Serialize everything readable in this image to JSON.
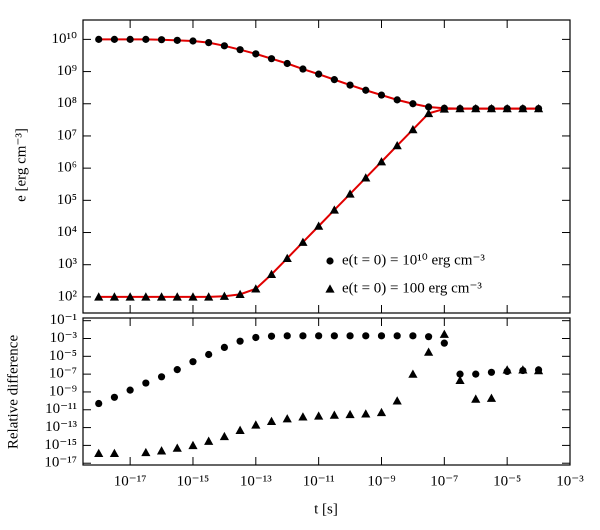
{
  "chart_data": [
    {
      "type": "scatter",
      "ylabel": "e [erg cm⁻³]",
      "log_x": true,
      "log_y": true,
      "legend": "lower right",
      "xlim": [
        3.16e-19,
        0.001
      ],
      "ylim": [
        31.6,
        40000000000.0
      ],
      "yticks": [
        {
          "value": 100,
          "label": "10²"
        },
        {
          "value": 1000,
          "label": "10³"
        },
        {
          "value": 10000,
          "label": "10⁴"
        },
        {
          "value": 100000,
          "label": "10⁵"
        },
        {
          "value": 1000000,
          "label": "10⁶"
        },
        {
          "value": 10000000,
          "label": "10⁷"
        },
        {
          "value": 100000000,
          "label": "10⁸"
        },
        {
          "value": 1000000000,
          "label": "10⁹"
        },
        {
          "value": 10000000000,
          "label": "10¹⁰"
        }
      ],
      "x": [
        1e-18,
        3.16e-18,
        1e-17,
        3.16e-17,
        1e-16,
        3.16e-16,
        1e-15,
        3.16e-15,
        1e-14,
        3.16e-14,
        1e-13,
        3.16e-13,
        1e-12,
        3.16e-12,
        1e-11,
        3.16e-11,
        1e-10,
        3.16e-10,
        1e-09,
        3.16e-09,
        1e-08,
        3.16e-08,
        1e-07,
        3.16e-07,
        1e-06,
        3.16e-06,
        1e-05,
        3.16e-05,
        0.0001
      ],
      "series": [
        {
          "kind": "line",
          "color": "#e00000",
          "values": [
            10000000000.0,
            10000000000.0,
            10000000000.0,
            10000000000.0,
            9770000000.0,
            9330000000.0,
            8910000000.0,
            7940000000.0,
            6310000000.0,
            4790000000.0,
            3550000000.0,
            2510000000.0,
            1780000000.0,
            1200000000.0,
            832000000.0,
            562000000.0,
            380000000.0,
            263000000.0,
            186000000.0,
            132000000.0,
            100000000.0,
            79400000.0,
            72400000.0,
            70800000.0,
            70800000.0,
            70800000.0,
            70800000.0,
            70800000.0,
            70800000.0
          ]
        },
        {
          "kind": "line",
          "color": "#e00000",
          "values": [
            100,
            100,
            100,
            100,
            100,
            100,
            100,
            100,
            105,
            120,
            178,
            501,
            1580,
            5010,
            15800,
            50100,
            158000,
            501000,
            1580000,
            5010000,
            15800000,
            50100000,
            69200000,
            70800000,
            70800000,
            70800000,
            70800000,
            70800000,
            70800000
          ]
        },
        {
          "kind": "circle",
          "name": "e(t = 0) = 10¹⁰ erg cm⁻³",
          "color": "#000000",
          "values": [
            10000000000.0,
            10000000000.0,
            10000000000.0,
            10000000000.0,
            9770000000.0,
            9330000000.0,
            8910000000.0,
            7940000000.0,
            6310000000.0,
            4790000000.0,
            3550000000.0,
            2510000000.0,
            1780000000.0,
            1200000000.0,
            832000000.0,
            562000000.0,
            380000000.0,
            263000000.0,
            186000000.0,
            132000000.0,
            100000000.0,
            79400000.0,
            72400000.0,
            70800000.0,
            70800000.0,
            70800000.0,
            70800000.0,
            70800000.0,
            70800000.0
          ]
        },
        {
          "kind": "triangle",
          "name": "e(t = 0) = 100 erg cm⁻³",
          "color": "#000000",
          "values": [
            100,
            100,
            100,
            100,
            100,
            100,
            100,
            100,
            105,
            120,
            178,
            501,
            1580,
            5010,
            15800,
            50100,
            158000,
            501000,
            1580000,
            5010000,
            15800000,
            50100000,
            69200000,
            70800000,
            70800000,
            70800000,
            70800000,
            70800000,
            70800000
          ]
        }
      ]
    },
    {
      "type": "scatter",
      "ylabel": "Relative difference",
      "xlabel": "t [s]",
      "log_x": true,
      "log_y": true,
      "xlim": [
        3.16e-19,
        0.001
      ],
      "ylim": [
        6.3e-18,
        0.2
      ],
      "xticks": [
        {
          "value": 1e-17,
          "label": "10⁻¹⁷"
        },
        {
          "value": 1e-15,
          "label": "10⁻¹⁵"
        },
        {
          "value": 1e-13,
          "label": "10⁻¹³"
        },
        {
          "value": 1e-11,
          "label": "10⁻¹¹"
        },
        {
          "value": 1e-09,
          "label": "10⁻⁹"
        },
        {
          "value": 1e-07,
          "label": "10⁻⁷"
        },
        {
          "value": 1e-05,
          "label": "10⁻⁵"
        },
        {
          "value": 0.001,
          "label": "10⁻³"
        }
      ],
      "yticks": [
        {
          "value": 1e-17,
          "label": "10⁻¹⁷"
        },
        {
          "value": 1e-15,
          "label": "10⁻¹⁵"
        },
        {
          "value": 1e-13,
          "label": "10⁻¹³"
        },
        {
          "value": 1e-11,
          "label": "10⁻¹¹"
        },
        {
          "value": 1e-09,
          "label": "10⁻⁹"
        },
        {
          "value": 1e-07,
          "label": "10⁻⁷"
        },
        {
          "value": 1e-05,
          "label": "10⁻⁵"
        },
        {
          "value": 0.001,
          "label": "10⁻³"
        },
        {
          "value": 0.1,
          "label": "10⁻¹"
        }
      ],
      "x": [
        1e-18,
        3.16e-18,
        1e-17,
        3.16e-17,
        1e-16,
        3.16e-16,
        1e-15,
        3.16e-15,
        1e-14,
        3.16e-14,
        1e-13,
        3.16e-13,
        1e-12,
        3.16e-12,
        1e-11,
        3.16e-11,
        1e-10,
        3.16e-10,
        1e-09,
        3.16e-09,
        1e-08,
        3.16e-08,
        1e-07,
        3.16e-07,
        1e-06,
        3.16e-06,
        1e-05,
        3.16e-05,
        0.0001
      ],
      "series": [
        {
          "kind": "circle",
          "color": "#000000",
          "values": [
            5e-11,
            2.5e-10,
            1.6e-09,
            1e-08,
            5e-08,
            3.2e-07,
            2.5e-06,
            1.6e-05,
            0.0001,
            0.0005,
            0.0013,
            0.0018,
            0.002,
            0.002,
            0.002,
            0.002,
            0.002,
            0.002,
            0.002,
            0.002,
            0.002,
            0.0016,
            0.0003,
            1e-07,
            1e-07,
            1.6e-07,
            2e-07,
            2.5e-07,
            3e-07
          ]
        },
        {
          "kind": "triangle",
          "color": "#000000",
          "values": [
            1.3e-16,
            1.3e-16,
            null,
            1.6e-16,
            2.5e-16,
            5e-16,
            1e-15,
            3e-15,
            1e-14,
            5e-14,
            2e-13,
            5e-13,
            1e-12,
            1.6e-12,
            2e-12,
            2.5e-12,
            3e-12,
            3.5e-12,
            5e-12,
            1e-10,
            1e-07,
            3e-05,
            0.003,
            2e-08,
            1.6e-10,
            2e-10,
            3e-07,
            3e-07,
            2.5e-07
          ]
        }
      ]
    }
  ]
}
